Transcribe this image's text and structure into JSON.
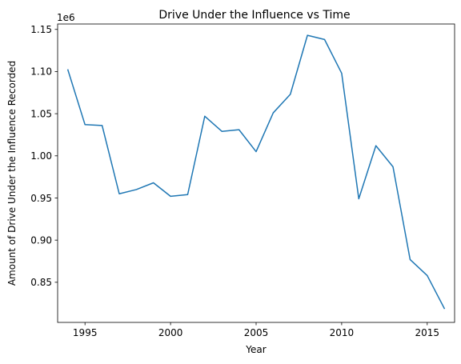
{
  "chart_data": {
    "type": "line",
    "title": "Drive Under the Influence vs Time",
    "xlabel": "Year",
    "ylabel": "Amount of Drive Under the Influence Recorded",
    "y_scale_label": "1e6",
    "xlim": [
      1993.4,
      2016.6
    ],
    "ylim": [
      0.8024,
      1.1564
    ],
    "x_ticks": [
      1995,
      2000,
      2005,
      2010,
      2015
    ],
    "x_tick_labels": [
      "1995",
      "2000",
      "2005",
      "2010",
      "2015"
    ],
    "y_ticks": [
      0.85,
      0.9,
      0.95,
      1.0,
      1.05,
      1.1,
      1.15
    ],
    "y_tick_labels": [
      "0.85",
      "0.90",
      "0.95",
      "1.00",
      "1.05",
      "1.10",
      "1.15"
    ],
    "grid": false,
    "line_color": "#1f77b4",
    "series": [
      {
        "x": [
          1994,
          1995,
          1996,
          1997,
          1998,
          1999,
          2000,
          2001,
          2002,
          2003,
          2004,
          2005,
          2006,
          2007,
          2008,
          2009,
          2010,
          2011,
          2012,
          2013,
          2014,
          2015,
          2016
        ],
        "values": [
          1.102,
          1.037,
          1.036,
          0.955,
          0.96,
          0.968,
          0.952,
          0.954,
          1.047,
          1.029,
          1.031,
          1.005,
          1.051,
          1.073,
          1.143,
          1.138,
          1.098,
          0.949,
          1.012,
          0.987,
          0.877,
          0.858,
          0.819
        ]
      }
    ]
  }
}
